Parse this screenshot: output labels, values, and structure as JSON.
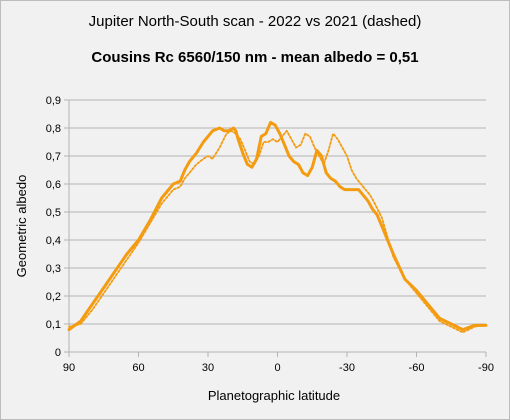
{
  "chart_data": {
    "type": "line",
    "title": "Jupiter North-South scan - 2022 vs 2021 (dashed)",
    "subtitle": "Cousins Rc 6560/150 nm - mean albedo = 0,51",
    "xlabel": "Planetographic latitude",
    "ylabel": "Geometric albedo",
    "xlim": [
      90,
      -90
    ],
    "ylim": [
      0,
      0.9
    ],
    "x_ticks": [
      90,
      60,
      30,
      0,
      -30,
      -60,
      -90
    ],
    "x_tick_labels": [
      "90",
      "60",
      "30",
      "0",
      "-30",
      "-60",
      "-90"
    ],
    "y_ticks": [
      0,
      0.1,
      0.2,
      0.3,
      0.4,
      0.5,
      0.6,
      0.7,
      0.8,
      0.9
    ],
    "y_tick_labels": [
      "0",
      "0,1",
      "0,2",
      "0,3",
      "0,4",
      "0,5",
      "0,6",
      "0,7",
      "0,8",
      "0,9"
    ],
    "grid": "horizontal",
    "series": [
      {
        "style": "solid",
        "color": "#f39c12",
        "x": [
          90,
          85,
          80,
          75,
          70,
          65,
          60,
          55,
          50,
          45,
          42,
          40,
          38,
          35,
          32,
          30,
          28,
          25,
          23,
          21,
          19,
          18,
          17,
          15,
          13,
          11,
          9,
          7,
          5,
          3,
          1,
          -1,
          -3,
          -5,
          -7,
          -9,
          -11,
          -13,
          -15,
          -17,
          -19,
          -21,
          -23,
          -25,
          -27,
          -29,
          -31,
          -33,
          -35,
          -37,
          -39,
          -41,
          -43,
          -45,
          -50,
          -55,
          -60,
          -65,
          -70,
          -75,
          -80,
          -85,
          -88,
          -90
        ],
        "y": [
          0.08,
          0.11,
          0.17,
          0.23,
          0.29,
          0.35,
          0.4,
          0.47,
          0.55,
          0.6,
          0.61,
          0.65,
          0.68,
          0.71,
          0.75,
          0.77,
          0.79,
          0.8,
          0.79,
          0.79,
          0.8,
          0.79,
          0.76,
          0.71,
          0.67,
          0.66,
          0.69,
          0.77,
          0.78,
          0.82,
          0.81,
          0.78,
          0.74,
          0.7,
          0.68,
          0.67,
          0.64,
          0.63,
          0.66,
          0.72,
          0.7,
          0.64,
          0.62,
          0.61,
          0.59,
          0.58,
          0.58,
          0.58,
          0.58,
          0.56,
          0.54,
          0.51,
          0.49,
          0.45,
          0.35,
          0.26,
          0.22,
          0.17,
          0.12,
          0.1,
          0.08,
          0.095,
          0.095,
          0.095
        ]
      },
      {
        "style": "dashed",
        "color": "#f39c12",
        "x": [
          90,
          85,
          80,
          75,
          70,
          65,
          60,
          55,
          50,
          45,
          42,
          40,
          38,
          35,
          32,
          30,
          28,
          25,
          22,
          20,
          18,
          16,
          14,
          12,
          10,
          8,
          6,
          4,
          2,
          0,
          -2,
          -4,
          -6,
          -8,
          -10,
          -12,
          -14,
          -16,
          -18,
          -20,
          -22,
          -24,
          -26,
          -28,
          -30,
          -32,
          -34,
          -36,
          -38,
          -40,
          -42,
          -45,
          -50,
          -55,
          -60,
          -65,
          -70,
          -75,
          -80,
          -85,
          -88,
          -90
        ],
        "y": [
          0.09,
          0.1,
          0.15,
          0.21,
          0.27,
          0.33,
          0.39,
          0.46,
          0.53,
          0.58,
          0.59,
          0.62,
          0.64,
          0.67,
          0.69,
          0.7,
          0.69,
          0.73,
          0.78,
          0.79,
          0.78,
          0.76,
          0.72,
          0.68,
          0.67,
          0.7,
          0.75,
          0.75,
          0.76,
          0.75,
          0.77,
          0.79,
          0.76,
          0.73,
          0.74,
          0.78,
          0.77,
          0.73,
          0.7,
          0.67,
          0.72,
          0.78,
          0.76,
          0.73,
          0.7,
          0.65,
          0.62,
          0.6,
          0.58,
          0.56,
          0.53,
          0.48,
          0.34,
          0.26,
          0.21,
          0.16,
          0.11,
          0.09,
          0.07,
          0.09,
          0.095,
          0.095
        ]
      }
    ]
  }
}
